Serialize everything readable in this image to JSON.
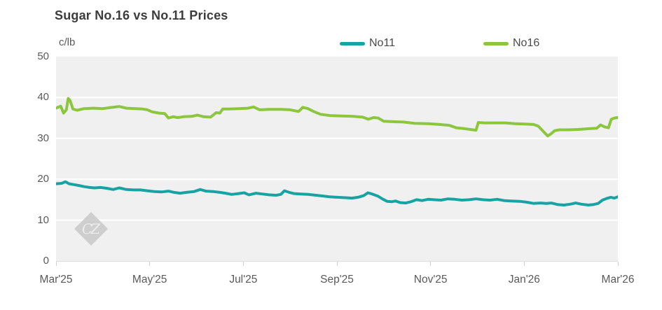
{
  "header": {
    "title": "Sugar No.16 vs No.11 Prices",
    "units_label": "c/lb"
  },
  "watermark_text": "CZ",
  "colors": {
    "no11": "#18a3a3",
    "no16": "#8cc63f",
    "plot_bg": "#f0f0f0",
    "grid": "#ffffff",
    "axis_text": "#595959",
    "title_text": "#3c3c3c",
    "tick_mark": "#d0d0d0"
  },
  "chart_data": {
    "type": "line",
    "title": "Sugar No.16 vs No.11 Prices",
    "ylabel": "c/lb",
    "ylim": [
      0,
      50
    ],
    "xlim": [
      0,
      12
    ],
    "x_unit": "months from Mar 2025",
    "grid": true,
    "legend_position": "top",
    "y_ticks": [
      0,
      10,
      20,
      30,
      40,
      50
    ],
    "x_ticks": [
      {
        "m": 0,
        "label": "Mar'25"
      },
      {
        "m": 2,
        "label": "May'25"
      },
      {
        "m": 4,
        "label": "Jul'25"
      },
      {
        "m": 6,
        "label": "Sep'25"
      },
      {
        "m": 8,
        "label": "Nov'25"
      },
      {
        "m": 10,
        "label": "Jan'26"
      },
      {
        "m": 12,
        "label": "Mar'26"
      }
    ],
    "series": [
      {
        "name": "No11",
        "color": "#18a3a3",
        "points": [
          [
            0.0,
            18.9
          ],
          [
            0.12,
            19.0
          ],
          [
            0.2,
            19.4
          ],
          [
            0.28,
            18.9
          ],
          [
            0.38,
            18.7
          ],
          [
            0.48,
            18.5
          ],
          [
            0.6,
            18.2
          ],
          [
            0.72,
            18.0
          ],
          [
            0.82,
            17.9
          ],
          [
            0.95,
            18.0
          ],
          [
            1.08,
            17.8
          ],
          [
            1.22,
            17.5
          ],
          [
            1.35,
            17.9
          ],
          [
            1.5,
            17.5
          ],
          [
            1.65,
            17.4
          ],
          [
            1.8,
            17.4
          ],
          [
            1.95,
            17.2
          ],
          [
            2.1,
            17.0
          ],
          [
            2.25,
            16.9
          ],
          [
            2.4,
            17.1
          ],
          [
            2.52,
            16.8
          ],
          [
            2.65,
            16.6
          ],
          [
            2.78,
            16.8
          ],
          [
            2.95,
            17.0
          ],
          [
            3.08,
            17.5
          ],
          [
            3.2,
            17.1
          ],
          [
            3.35,
            17.0
          ],
          [
            3.5,
            16.8
          ],
          [
            3.62,
            16.6
          ],
          [
            3.75,
            16.3
          ],
          [
            3.9,
            16.5
          ],
          [
            4.02,
            16.7
          ],
          [
            4.12,
            16.2
          ],
          [
            4.27,
            16.6
          ],
          [
            4.4,
            16.4
          ],
          [
            4.55,
            16.2
          ],
          [
            4.7,
            16.1
          ],
          [
            4.8,
            16.3
          ],
          [
            4.88,
            17.2
          ],
          [
            4.98,
            16.8
          ],
          [
            5.08,
            16.5
          ],
          [
            5.22,
            16.4
          ],
          [
            5.38,
            16.3
          ],
          [
            5.55,
            16.1
          ],
          [
            5.7,
            15.9
          ],
          [
            5.85,
            15.7
          ],
          [
            6.0,
            15.6
          ],
          [
            6.18,
            15.5
          ],
          [
            6.32,
            15.4
          ],
          [
            6.45,
            15.6
          ],
          [
            6.57,
            16.0
          ],
          [
            6.66,
            16.7
          ],
          [
            6.75,
            16.4
          ],
          [
            6.87,
            15.9
          ],
          [
            6.97,
            15.2
          ],
          [
            7.07,
            14.6
          ],
          [
            7.17,
            14.5
          ],
          [
            7.25,
            14.7
          ],
          [
            7.35,
            14.3
          ],
          [
            7.47,
            14.2
          ],
          [
            7.58,
            14.5
          ],
          [
            7.7,
            15.0
          ],
          [
            7.82,
            14.8
          ],
          [
            7.95,
            15.1
          ],
          [
            8.07,
            15.0
          ],
          [
            8.22,
            14.9
          ],
          [
            8.37,
            15.2
          ],
          [
            8.52,
            15.1
          ],
          [
            8.67,
            14.9
          ],
          [
            8.82,
            15.0
          ],
          [
            8.97,
            15.2
          ],
          [
            9.12,
            15.0
          ],
          [
            9.27,
            14.9
          ],
          [
            9.42,
            15.1
          ],
          [
            9.57,
            14.8
          ],
          [
            9.72,
            14.7
          ],
          [
            9.9,
            14.6
          ],
          [
            10.05,
            14.4
          ],
          [
            10.2,
            14.1
          ],
          [
            10.35,
            14.2
          ],
          [
            10.47,
            14.1
          ],
          [
            10.58,
            14.2
          ],
          [
            10.72,
            13.8
          ],
          [
            10.85,
            13.7
          ],
          [
            10.98,
            13.9
          ],
          [
            11.1,
            14.2
          ],
          [
            11.22,
            13.9
          ],
          [
            11.37,
            13.7
          ],
          [
            11.47,
            13.8
          ],
          [
            11.58,
            14.1
          ],
          [
            11.67,
            14.9
          ],
          [
            11.76,
            15.3
          ],
          [
            11.85,
            15.6
          ],
          [
            11.92,
            15.4
          ],
          [
            12.0,
            15.7
          ]
        ]
      },
      {
        "name": "No16",
        "color": "#8cc63f",
        "points": [
          [
            0.0,
            37.4
          ],
          [
            0.1,
            37.9
          ],
          [
            0.16,
            36.2
          ],
          [
            0.22,
            37.0
          ],
          [
            0.26,
            39.8
          ],
          [
            0.3,
            39.3
          ],
          [
            0.36,
            37.2
          ],
          [
            0.45,
            36.9
          ],
          [
            0.6,
            37.3
          ],
          [
            0.8,
            37.4
          ],
          [
            1.0,
            37.3
          ],
          [
            1.2,
            37.6
          ],
          [
            1.35,
            37.8
          ],
          [
            1.5,
            37.4
          ],
          [
            1.7,
            37.3
          ],
          [
            1.85,
            37.2
          ],
          [
            1.95,
            37.0
          ],
          [
            2.05,
            36.5
          ],
          [
            2.2,
            36.2
          ],
          [
            2.32,
            36.1
          ],
          [
            2.4,
            35.0
          ],
          [
            2.5,
            35.3
          ],
          [
            2.6,
            35.1
          ],
          [
            2.72,
            35.3
          ],
          [
            2.9,
            35.4
          ],
          [
            3.02,
            35.7
          ],
          [
            3.15,
            35.3
          ],
          [
            3.3,
            35.2
          ],
          [
            3.42,
            36.3
          ],
          [
            3.5,
            36.2
          ],
          [
            3.56,
            37.2
          ],
          [
            3.7,
            37.2
          ],
          [
            3.9,
            37.3
          ],
          [
            4.1,
            37.4
          ],
          [
            4.22,
            37.7
          ],
          [
            4.35,
            37.0
          ],
          [
            4.55,
            37.1
          ],
          [
            4.8,
            37.1
          ],
          [
            5.0,
            37.0
          ],
          [
            5.18,
            36.6
          ],
          [
            5.27,
            37.6
          ],
          [
            5.38,
            37.3
          ],
          [
            5.5,
            36.6
          ],
          [
            5.65,
            35.9
          ],
          [
            5.85,
            35.6
          ],
          [
            6.1,
            35.5
          ],
          [
            6.35,
            35.4
          ],
          [
            6.55,
            35.2
          ],
          [
            6.67,
            34.7
          ],
          [
            6.78,
            35.1
          ],
          [
            6.88,
            35.0
          ],
          [
            7.0,
            34.2
          ],
          [
            7.2,
            34.1
          ],
          [
            7.42,
            34.0
          ],
          [
            7.65,
            33.7
          ],
          [
            7.95,
            33.6
          ],
          [
            8.2,
            33.4
          ],
          [
            8.4,
            33.2
          ],
          [
            8.55,
            32.6
          ],
          [
            8.72,
            32.4
          ],
          [
            8.9,
            32.1
          ],
          [
            8.97,
            32.0
          ],
          [
            9.02,
            33.9
          ],
          [
            9.15,
            33.8
          ],
          [
            9.4,
            33.8
          ],
          [
            9.6,
            33.8
          ],
          [
            9.8,
            33.6
          ],
          [
            10.05,
            33.5
          ],
          [
            10.2,
            33.4
          ],
          [
            10.3,
            33.0
          ],
          [
            10.4,
            31.8
          ],
          [
            10.5,
            30.6
          ],
          [
            10.58,
            31.2
          ],
          [
            10.65,
            31.9
          ],
          [
            10.75,
            32.1
          ],
          [
            10.95,
            32.1
          ],
          [
            11.15,
            32.2
          ],
          [
            11.4,
            32.4
          ],
          [
            11.55,
            32.5
          ],
          [
            11.63,
            33.3
          ],
          [
            11.72,
            32.8
          ],
          [
            11.8,
            32.6
          ],
          [
            11.86,
            34.7
          ],
          [
            11.93,
            35.0
          ],
          [
            12.0,
            35.1
          ]
        ]
      }
    ]
  }
}
